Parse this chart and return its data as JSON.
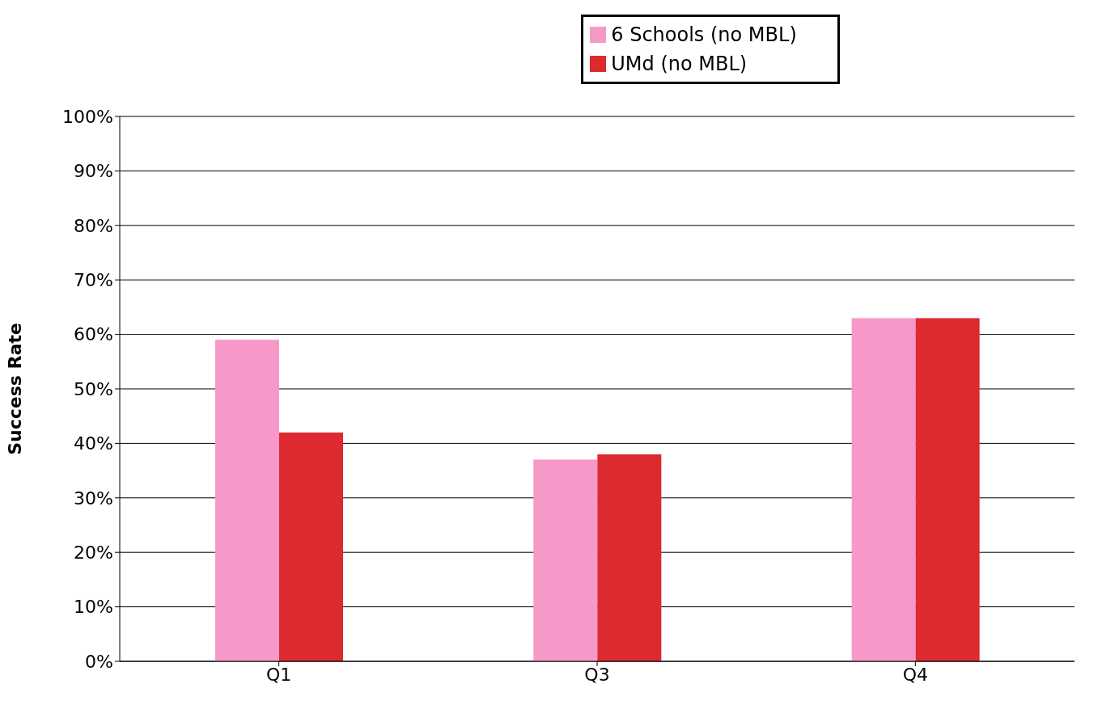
{
  "chart_data": {
    "type": "bar",
    "ylabel": "Success Rate",
    "categories": [
      "Q1",
      "Q3",
      "Q4"
    ],
    "series": [
      {
        "name": "6 Schools (no MBL)",
        "color": "#f799c8",
        "values": [
          59,
          37,
          63
        ]
      },
      {
        "name": "UMd (no MBL)",
        "color": "#dc2a30",
        "values": [
          42,
          38,
          63
        ]
      }
    ],
    "ylim": [
      0,
      100
    ],
    "yticks": [
      {
        "value": 0,
        "label": "0%"
      },
      {
        "value": 10,
        "label": "10%"
      },
      {
        "value": 20,
        "label": "20%"
      },
      {
        "value": 30,
        "label": "30%"
      },
      {
        "value": 40,
        "label": "40%"
      },
      {
        "value": 50,
        "label": "50%"
      },
      {
        "value": 60,
        "label": "60%"
      },
      {
        "value": 70,
        "label": "70%"
      },
      {
        "value": 80,
        "label": "80%"
      },
      {
        "value": 90,
        "label": "90%"
      },
      {
        "value": 100,
        "label": "100%"
      }
    ],
    "grid": "y",
    "legend": "top"
  }
}
